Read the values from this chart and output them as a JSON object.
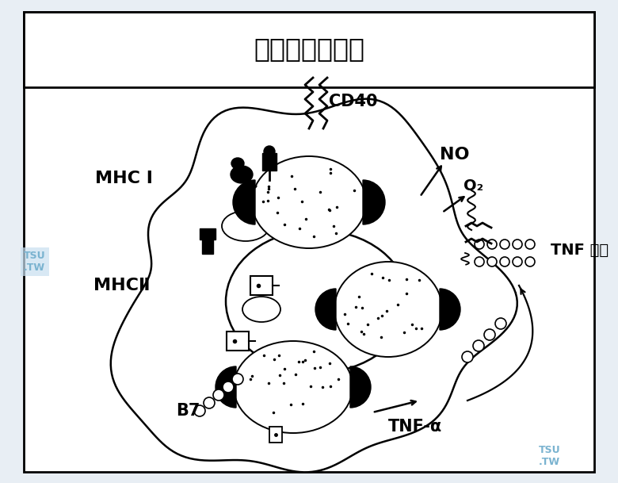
{
  "title": "激活的巨噬细胞",
  "bg_color": "#e8eef4",
  "panel_bg": "#ffffff",
  "text_color": "#000000",
  "label_MHC1": "MHC I",
  "label_MHC2": "MHCⅡ",
  "label_CD40": "CD40",
  "label_NO": "NO",
  "label_O2": "O₂",
  "label_TNF_receptor": "TNF 受体",
  "label_B7": "B7",
  "label_TNF_alpha": "TNF-α",
  "watermark1": "TSU\n.TW",
  "watermark2": "TSU\n.TW",
  "fig_width": 7.8,
  "fig_height": 6.09,
  "dpi": 100
}
